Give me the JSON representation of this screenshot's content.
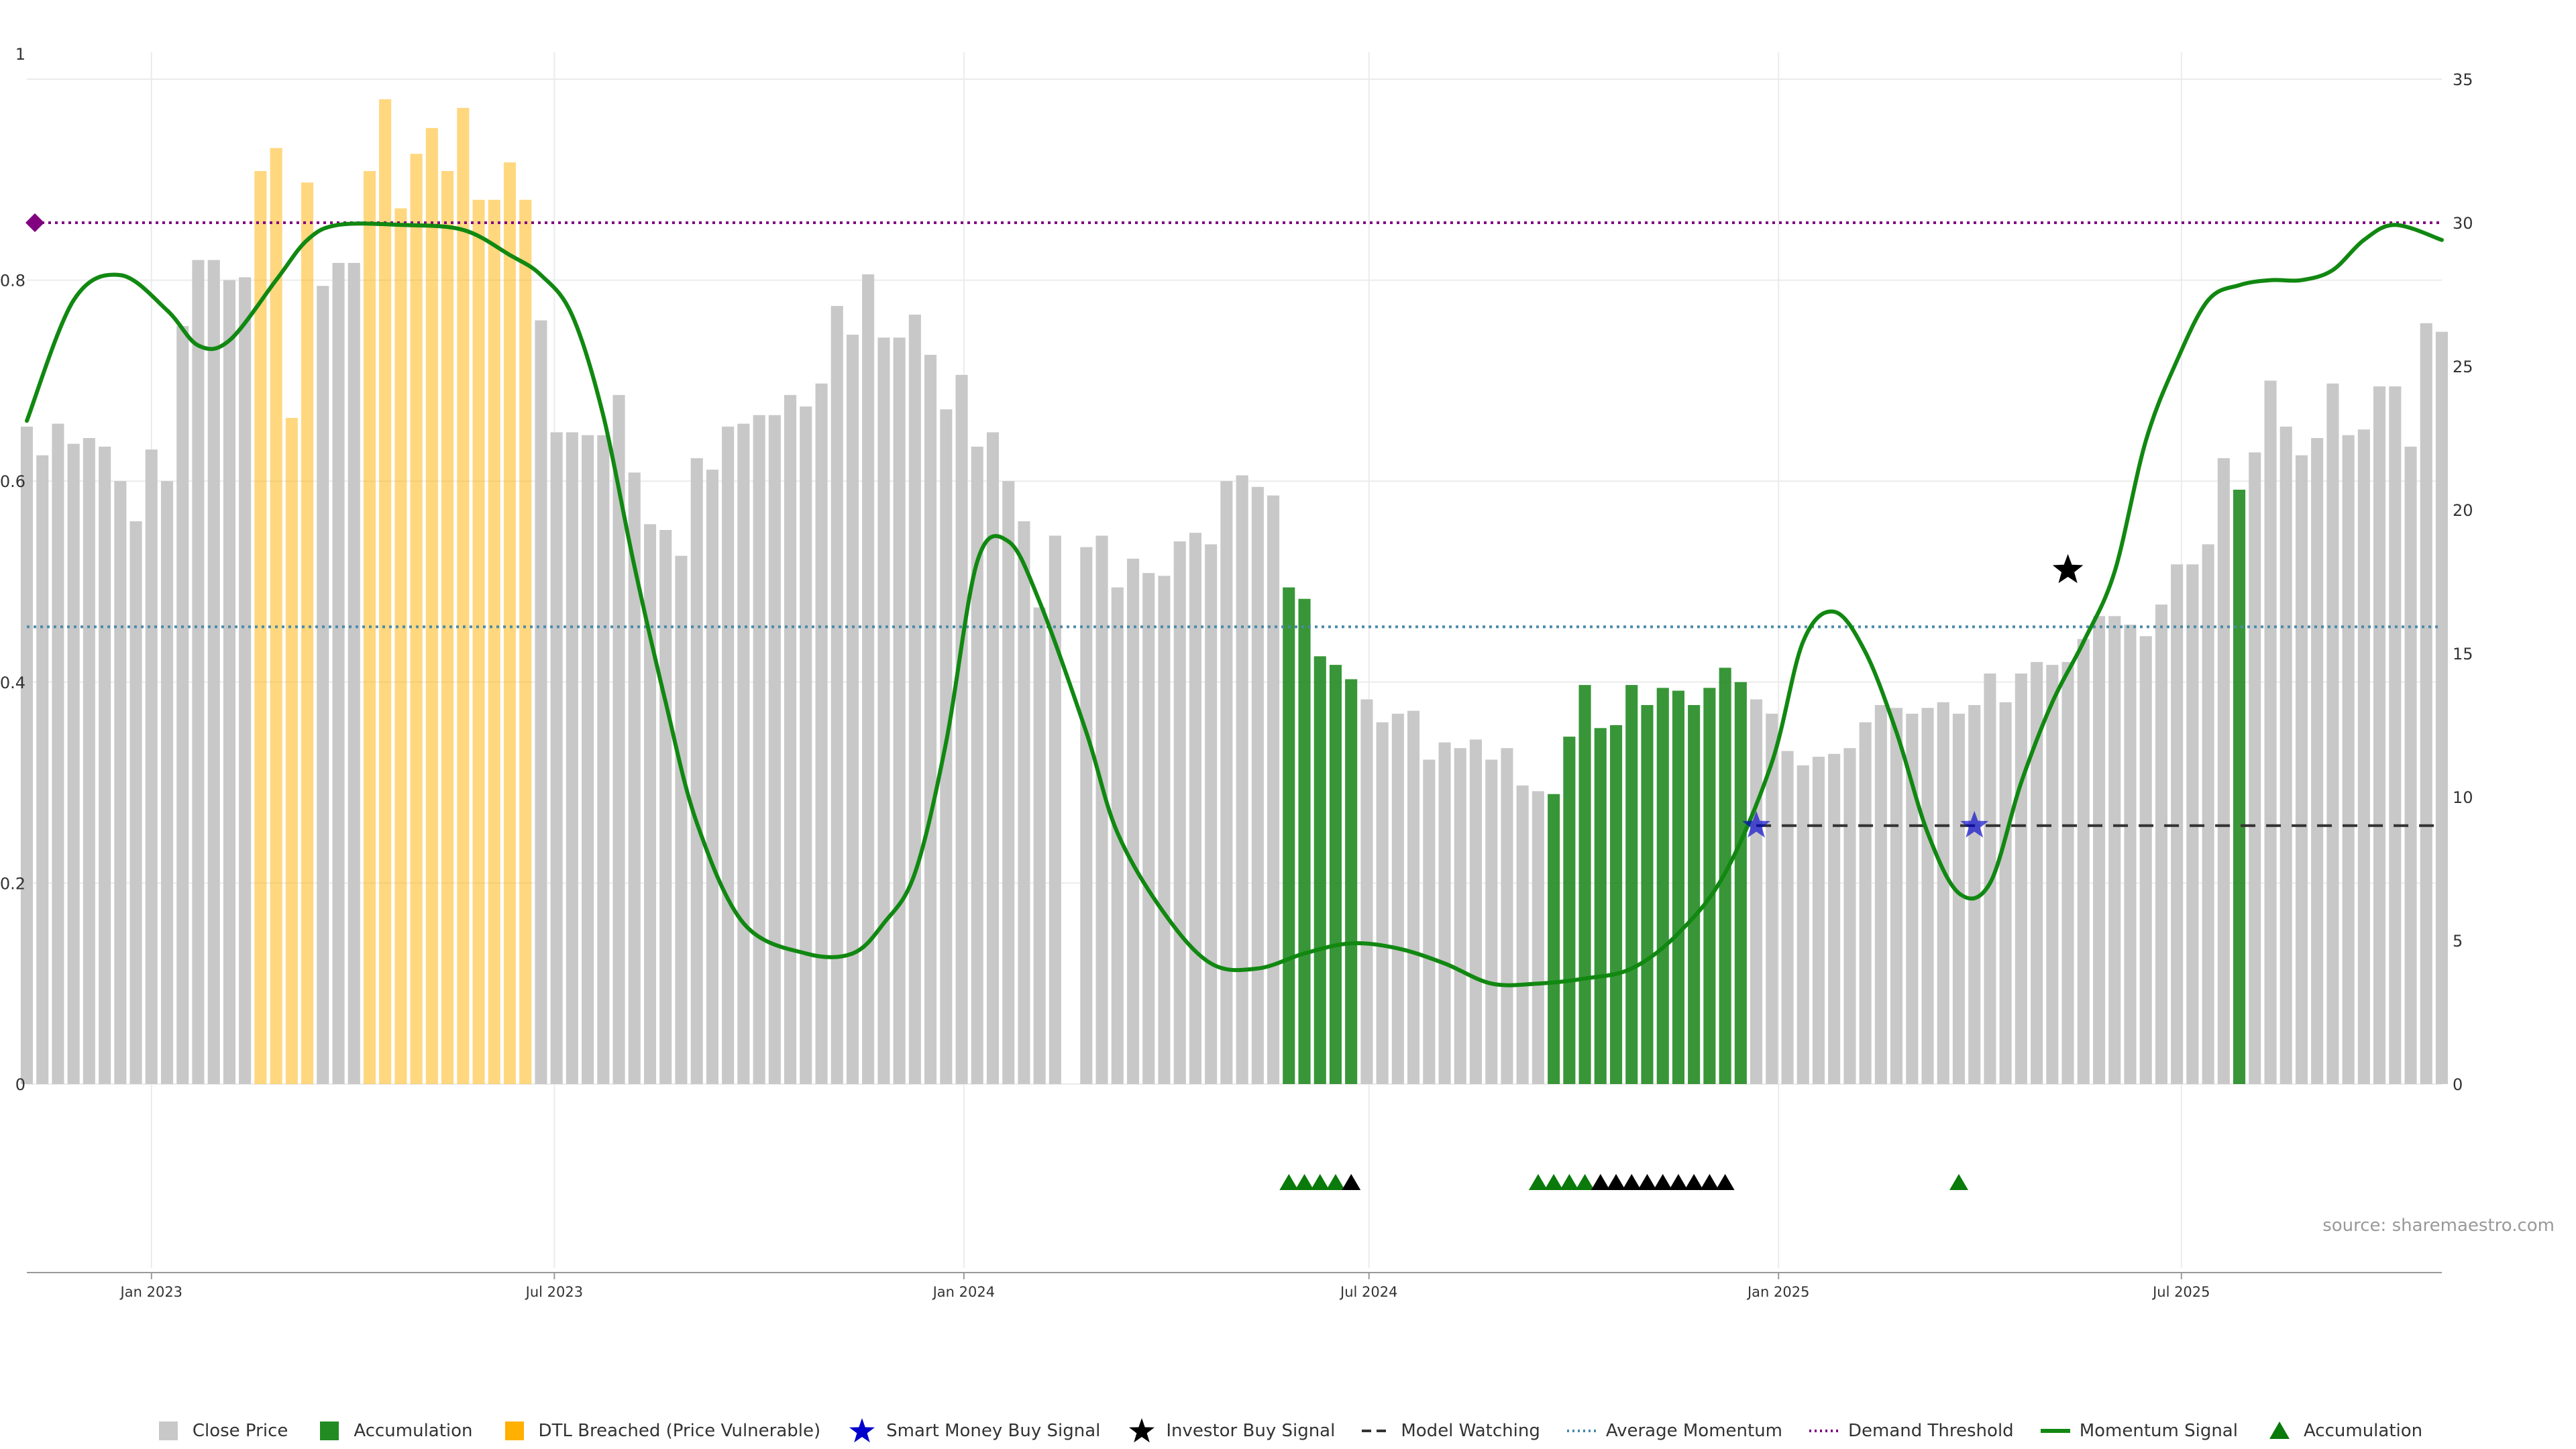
{
  "chart_data": {
    "type": "bar",
    "title": "",
    "xlabel": "",
    "ylabel": "",
    "left_axis": {
      "ylim": [
        0,
        1
      ],
      "ticks": [
        "0",
        "0.2",
        "0.4",
        "0.6",
        "0.8",
        "1"
      ]
    },
    "right_axis": {
      "ylim": [
        0,
        35
      ],
      "ticks": [
        "0",
        "5",
        "10",
        "15",
        "20",
        "25",
        "30",
        "35"
      ]
    },
    "x_axis": {
      "start": "2022-11-06",
      "end": "2025-10-26",
      "ticks": [
        {
          "date": "2023-01-01",
          "label": "Jan 2023"
        },
        {
          "date": "2023-07-01",
          "label": "Jul 2023"
        },
        {
          "date": "2024-01-01",
          "label": "Jan 2024"
        },
        {
          "date": "2024-07-01",
          "label": "Jul 2024"
        },
        {
          "date": "2025-01-01",
          "label": "Jan 2025"
        },
        {
          "date": "2025-07-01",
          "label": "Jul 2025"
        }
      ]
    },
    "grid": true,
    "legend_position": "bottom",
    "colors": {
      "close": "#c8c8c8",
      "accumulation": "#228b22",
      "dtl": "#ffb000",
      "smart_money": "#0000cc",
      "investor": "#000000",
      "model_watching": "#333333",
      "avg_momentum": "#4a8aa8",
      "demand": "#800080",
      "momentum": "#118811",
      "triangle_green": "#0a7a0a",
      "triangle_black": "#000000"
    },
    "close_price": {
      "start": "2022-11-06",
      "interval_days": 7,
      "values": [
        22.9,
        21.9,
        23.0,
        22.3,
        22.5,
        22.2,
        21.0,
        19.6,
        22.1,
        21.0,
        26.4,
        28.7,
        28.7,
        28.0,
        28.1,
        31.8,
        32.6,
        23.2,
        31.4,
        27.8,
        28.6,
        28.6,
        31.8,
        34.3,
        30.5,
        32.4,
        33.3,
        31.8,
        34.0,
        30.8,
        30.8,
        32.1,
        30.8,
        26.6,
        22.7,
        22.7,
        22.6,
        22.6,
        24.0,
        21.3,
        19.5,
        19.3,
        18.4,
        21.8,
        21.4,
        22.9,
        23.0,
        23.3,
        23.3,
        24.0,
        23.6,
        24.4,
        27.1,
        26.1,
        28.2,
        26.0,
        26.0,
        26.8,
        25.4,
        23.5,
        24.7,
        22.2,
        22.7,
        21.0,
        19.6,
        16.6,
        19.1,
        0.0,
        18.7,
        19.1,
        17.3,
        18.3,
        17.8,
        17.7,
        18.9,
        19.2,
        18.8,
        21.0,
        21.2,
        20.8,
        20.5,
        17.3,
        16.9,
        14.9,
        14.6,
        14.1,
        13.4,
        12.6,
        12.9,
        13.0,
        11.3,
        11.9,
        11.7,
        12.0,
        11.3,
        11.7,
        10.4,
        10.2,
        10.1,
        12.1,
        13.9,
        12.4,
        12.5,
        13.9,
        13.2,
        13.8,
        13.7,
        13.2,
        13.8,
        14.5,
        14.0,
        13.4,
        12.9,
        11.6,
        11.1,
        11.4,
        11.5,
        11.7,
        12.6,
        13.2,
        13.1,
        12.9,
        13.1,
        13.3,
        12.9,
        13.2,
        14.3,
        13.3,
        14.3,
        14.7,
        14.6,
        14.7,
        15.5,
        16.3,
        16.3,
        16.0,
        15.6,
        16.7,
        18.1,
        18.1,
        18.8,
        21.8,
        20.7,
        22.0,
        24.5,
        22.9,
        21.9,
        22.5,
        24.4,
        22.6,
        22.8,
        24.3,
        24.3,
        22.2,
        26.5,
        26.2
      ],
      "accumulation_bars": [
        81,
        82,
        83,
        84,
        85,
        98,
        99,
        100,
        101,
        102,
        103,
        104,
        105,
        106,
        107,
        108,
        109,
        110,
        142
      ],
      "dtl_breached_bars": [
        15,
        16,
        17,
        18,
        22,
        23,
        24,
        25,
        26,
        27,
        28,
        29,
        30,
        31,
        32
      ]
    },
    "momentum_signal": {
      "points": [
        [
          "2022-11-06",
          0.66
        ],
        [
          "2022-11-27",
          0.78
        ],
        [
          "2022-12-18",
          0.805
        ],
        [
          "2023-01-08",
          0.77
        ],
        [
          "2023-01-22",
          0.735
        ],
        [
          "2023-02-05",
          0.74
        ],
        [
          "2023-02-26",
          0.8
        ],
        [
          "2023-03-12",
          0.84
        ],
        [
          "2023-03-26",
          0.855
        ],
        [
          "2023-04-23",
          0.855
        ],
        [
          "2023-05-21",
          0.85
        ],
        [
          "2023-06-11",
          0.825
        ],
        [
          "2023-06-25",
          0.805
        ],
        [
          "2023-07-09",
          0.765
        ],
        [
          "2023-07-23",
          0.665
        ],
        [
          "2023-08-06",
          0.515
        ],
        [
          "2023-08-20",
          0.38
        ],
        [
          "2023-09-03",
          0.26
        ],
        [
          "2023-09-24",
          0.16
        ],
        [
          "2023-10-22",
          0.13
        ],
        [
          "2023-11-12",
          0.13
        ],
        [
          "2023-11-26",
          0.16
        ],
        [
          "2023-12-10",
          0.21
        ],
        [
          "2023-12-24",
          0.34
        ],
        [
          "2024-01-07",
          0.52
        ],
        [
          "2024-01-21",
          0.54
        ],
        [
          "2024-02-04",
          0.48
        ],
        [
          "2024-02-25",
          0.35
        ],
        [
          "2024-03-10",
          0.25
        ],
        [
          "2024-03-31",
          0.17
        ],
        [
          "2024-04-21",
          0.12
        ],
        [
          "2024-05-12",
          0.115
        ],
        [
          "2024-06-02",
          0.13
        ],
        [
          "2024-06-23",
          0.14
        ],
        [
          "2024-07-14",
          0.135
        ],
        [
          "2024-08-04",
          0.12
        ],
        [
          "2024-08-25",
          0.1
        ],
        [
          "2024-09-15",
          0.1
        ],
        [
          "2024-10-06",
          0.105
        ],
        [
          "2024-10-27",
          0.115
        ],
        [
          "2024-11-17",
          0.15
        ],
        [
          "2024-12-08",
          0.21
        ],
        [
          "2024-12-29",
          0.32
        ],
        [
          "2025-01-12",
          0.44
        ],
        [
          "2025-01-26",
          0.47
        ],
        [
          "2025-02-09",
          0.43
        ],
        [
          "2025-02-23",
          0.35
        ],
        [
          "2025-03-09",
          0.25
        ],
        [
          "2025-03-23",
          0.19
        ],
        [
          "2025-04-06",
          0.2
        ],
        [
          "2025-04-20",
          0.3
        ],
        [
          "2025-05-04",
          0.38
        ],
        [
          "2025-05-18",
          0.44
        ],
        [
          "2025-06-01",
          0.51
        ],
        [
          "2025-06-15",
          0.64
        ],
        [
          "2025-06-29",
          0.72
        ],
        [
          "2025-07-13",
          0.78
        ],
        [
          "2025-07-27",
          0.795
        ],
        [
          "2025-08-10",
          0.8
        ],
        [
          "2025-08-24",
          0.8
        ],
        [
          "2025-09-07",
          0.81
        ],
        [
          "2025-09-21",
          0.84
        ],
        [
          "2025-10-05",
          0.855
        ],
        [
          "2025-10-26",
          0.84
        ]
      ]
    },
    "average_momentum": 0.455,
    "demand_threshold": 30,
    "model_watching": {
      "value": 9,
      "start": "2024-12-22",
      "end": "2025-10-26"
    },
    "smart_money_signals": [
      {
        "date": "2024-12-22",
        "value": 9
      },
      {
        "date": "2025-03-30",
        "value": 9
      }
    ],
    "investor_signals": [
      {
        "date": "2025-05-11",
        "value": 17.9
      }
    ],
    "triangle_markers": {
      "green": [
        "2024-05-26",
        "2024-06-02",
        "2024-06-09",
        "2024-06-16",
        "2024-09-15",
        "2024-09-22",
        "2024-09-29",
        "2024-10-06",
        "2025-03-23"
      ],
      "black": [
        "2024-06-23",
        "2024-10-13",
        "2024-10-20",
        "2024-10-27",
        "2024-11-03",
        "2024-11-10",
        "2024-11-17",
        "2024-11-24",
        "2024-12-01",
        "2024-12-08"
      ]
    }
  },
  "legend": [
    {
      "label": "Close Price",
      "symbol": "square",
      "color": "#c8c8c8"
    },
    {
      "label": "Accumulation",
      "symbol": "square",
      "color": "#228b22"
    },
    {
      "label": "DTL Breached (Price Vulnerable)",
      "symbol": "square",
      "color": "#ffb000"
    },
    {
      "label": "Smart Money Buy Signal",
      "symbol": "star",
      "color": "#0000cc"
    },
    {
      "label": "Investor Buy Signal",
      "symbol": "star",
      "color": "#000000"
    },
    {
      "label": "Model Watching",
      "symbol": "dash",
      "color": "#333333"
    },
    {
      "label": "Average Momentum",
      "symbol": "dot",
      "color": "#4a8aa8"
    },
    {
      "label": "Demand Threshold",
      "symbol": "dot",
      "color": "#800080"
    },
    {
      "label": "Momentum Signal",
      "symbol": "line",
      "color": "#118811"
    },
    {
      "label": "Accumulation",
      "symbol": "triangle",
      "color": "#0a7a0a"
    }
  ],
  "source": "source: sharemaestro.com"
}
